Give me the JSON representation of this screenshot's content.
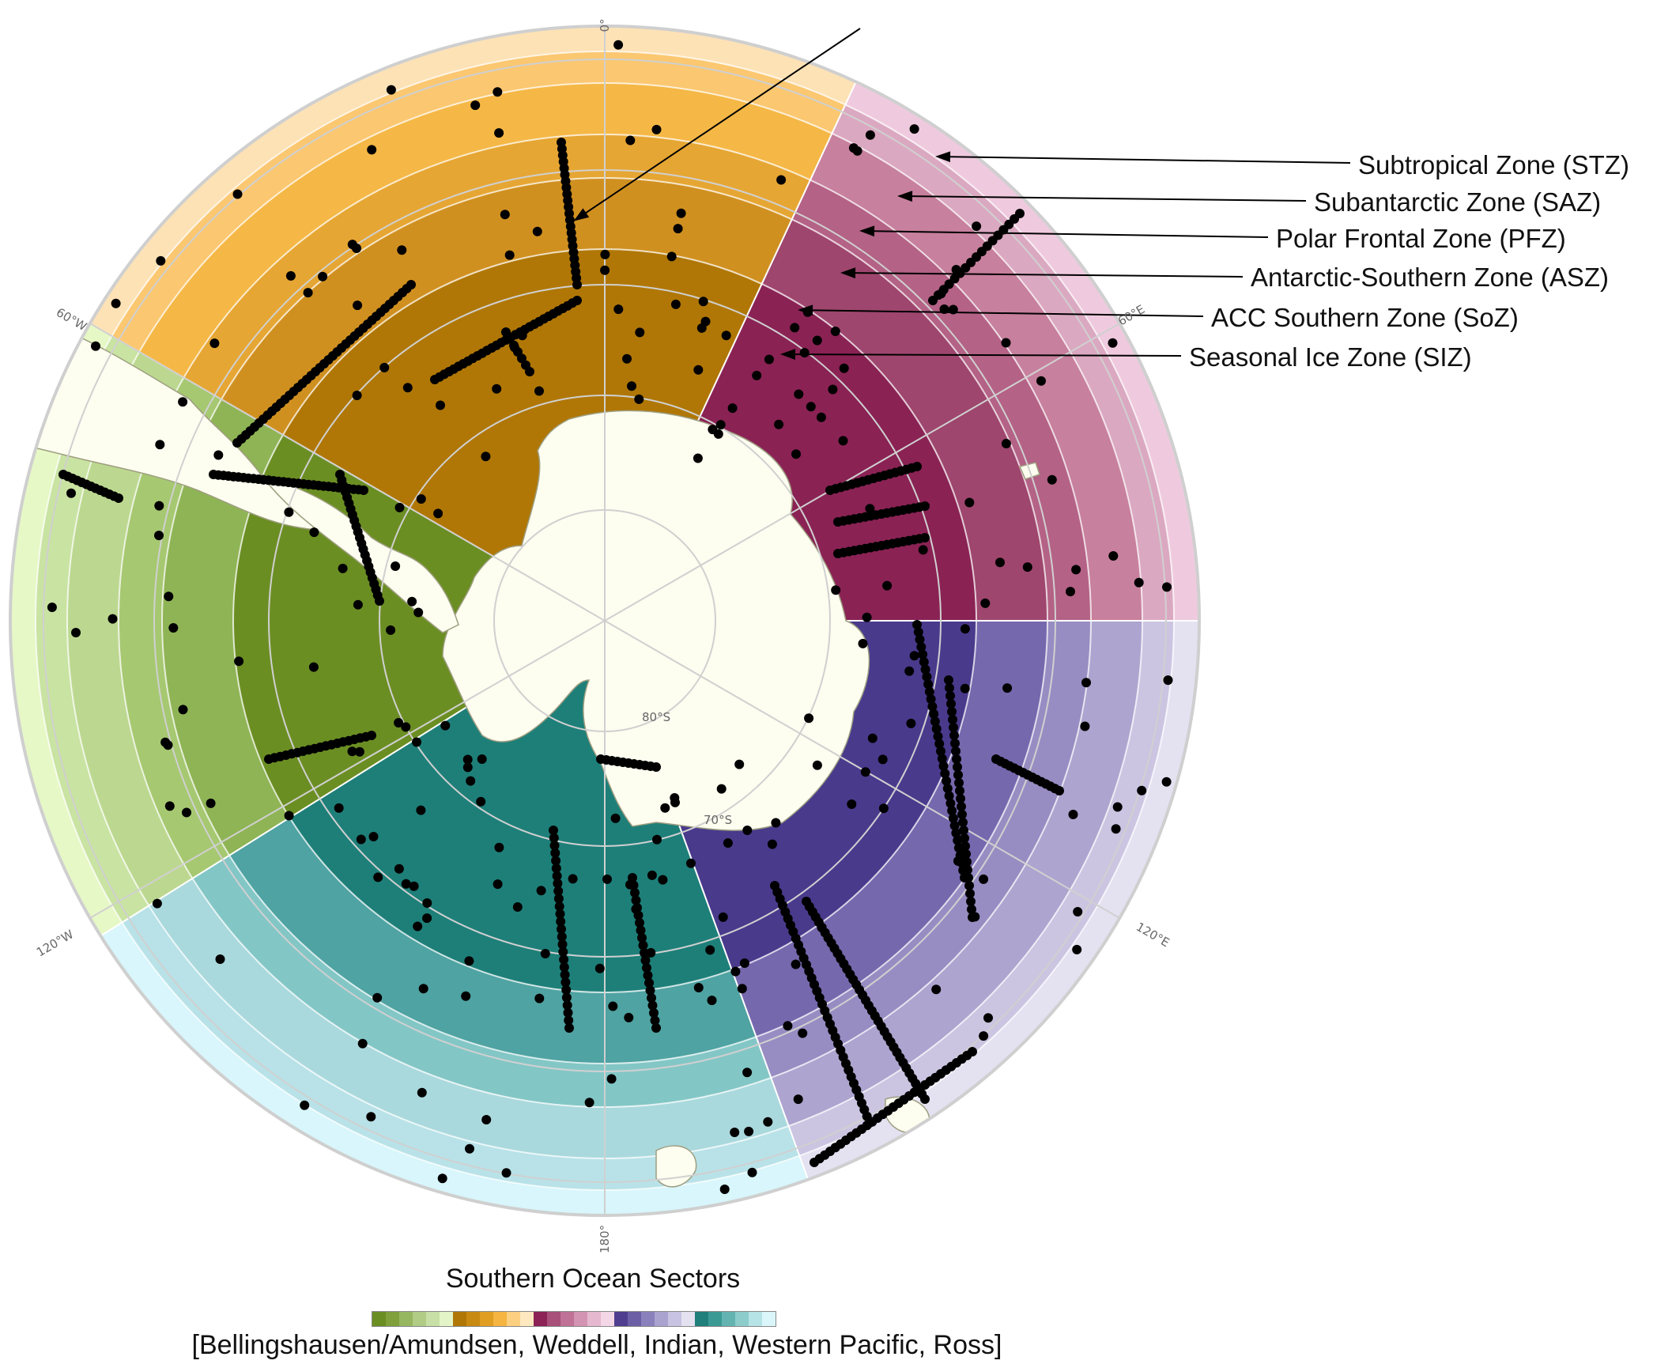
{
  "zone_labels": [
    {
      "label": "Subtropical Zone (STZ)"
    },
    {
      "label": "Subantarctic Zone (SAZ)"
    },
    {
      "label": "Polar Frontal Zone (PFZ)"
    },
    {
      "label": "Antarctic-Southern Zone (ASZ)"
    },
    {
      "label": "ACC Southern Zone (SoZ)"
    },
    {
      "label": "Seasonal Ice Zone (SIZ)"
    }
  ],
  "grid_labels": {
    "lon_0": "0°",
    "lon_60w": "60°W",
    "lon_60e": "60°E",
    "lon_120w": "120°W",
    "lon_120e": "120°E",
    "lon_180": "180°",
    "lat_80s": "80°S",
    "lat_70s": "70°S"
  },
  "legend": {
    "title": "Southern Ocean Sectors",
    "caption": "[Bellingshausen/Amundsen, Weddell, Indian, Western Pacific, Ross]",
    "colors": [
      "#6b8e23",
      "#7fa03a",
      "#97b660",
      "#b0cc85",
      "#c8e0a6",
      "#e3f5c6",
      "#b07706",
      "#c98a12",
      "#e09e22",
      "#f5b540",
      "#fcd080",
      "#fde8c0",
      "#8c2255",
      "#a84f7a",
      "#bf7196",
      "#d393b2",
      "#e6b8cf",
      "#f4d7e6",
      "#4f3d8f",
      "#6c5fa6",
      "#8a80bc",
      "#aaa3d0",
      "#c8c3e2",
      "#e4e1f1",
      "#1f7f7a",
      "#3c9a95",
      "#63b4b1",
      "#8ccdcc",
      "#b6e3e5",
      "#daf6fa"
    ]
  },
  "sectors": [
    {
      "name": "Weddell",
      "colors": [
        "#b07706",
        "#d09020",
        "#e6a633",
        "#f5b846",
        "#fbc770",
        "#fde2b6"
      ]
    },
    {
      "name": "Indian",
      "colors": [
        "#8a2254",
        "#9e466e",
        "#b46286",
        "#c7809d",
        "#dba8c1",
        "#efcade"
      ]
    },
    {
      "name": "Western Pacific",
      "colors": [
        "#4a3a8c",
        "#7668ad",
        "#978dc2",
        "#ada4cf",
        "#cbc5e2",
        "#e4e1f1"
      ]
    },
    {
      "name": "Ross",
      "colors": [
        "#1e7f79",
        "#4fa3a2",
        "#83c6c6",
        "#aad9dd",
        "#b8e2e8",
        "#d8f6fb"
      ]
    },
    {
      "name": "Bellingshausen/Amundsen",
      "colors": [
        "#6b8e23",
        "#8fb455",
        "#a6c871",
        "#bcd890",
        "#c9e3a2",
        "#e6f8c6"
      ]
    }
  ]
}
